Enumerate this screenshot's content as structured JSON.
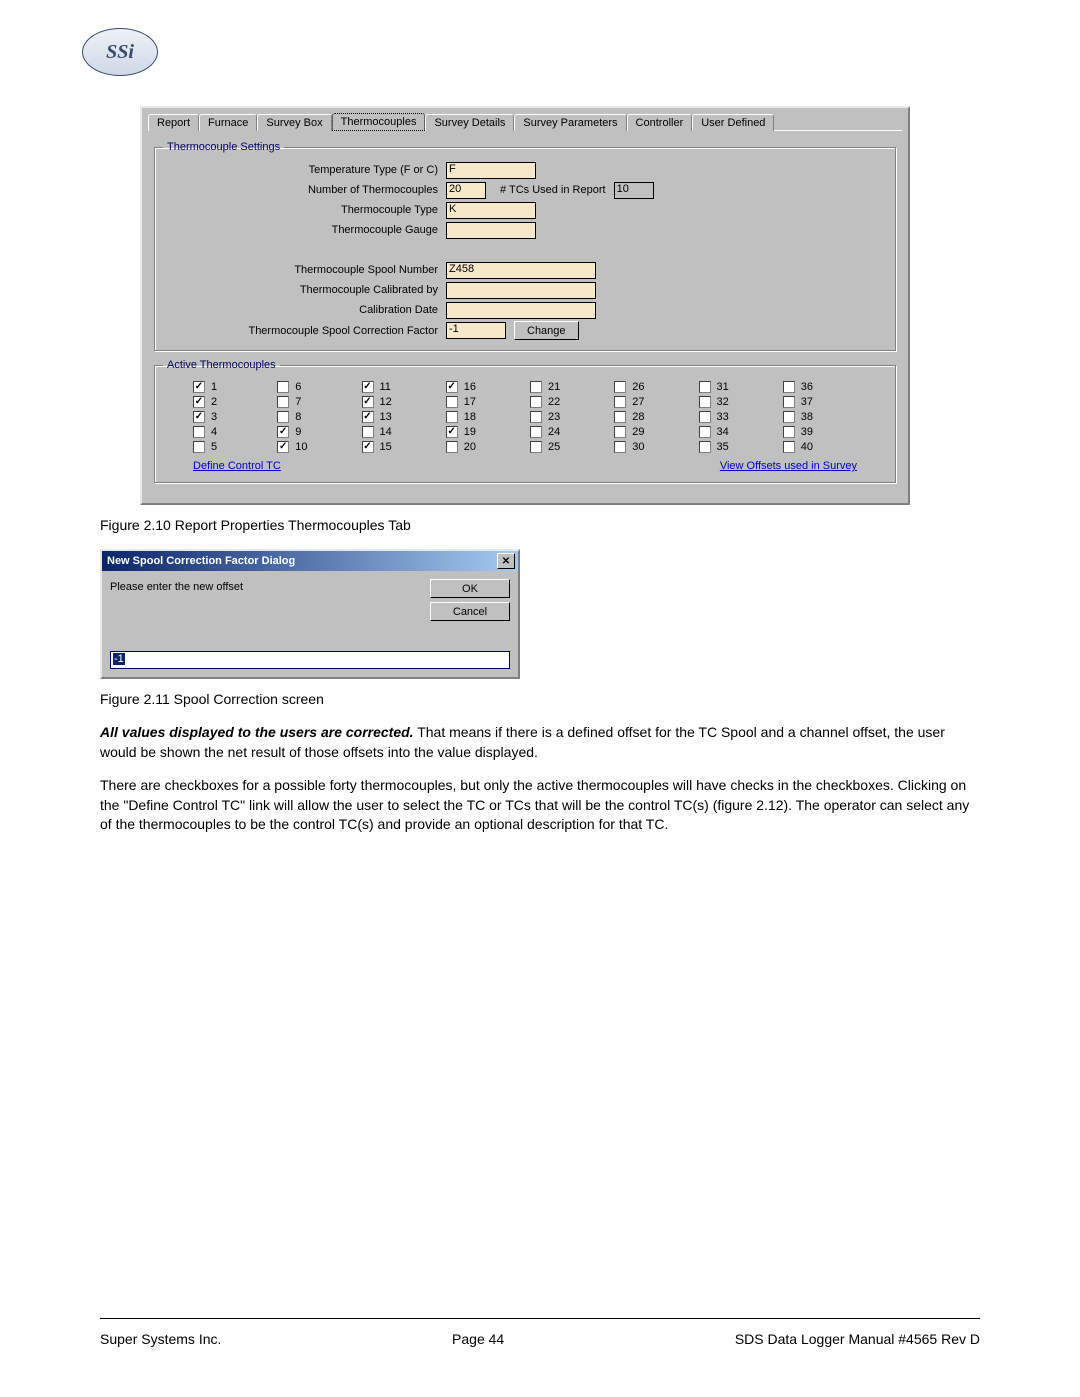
{
  "logo_text": "SSi",
  "tabs": [
    "Report",
    "Furnace",
    "Survey Box",
    "Thermocouples",
    "Survey Details",
    "Survey Parameters",
    "Controller",
    "User Defined"
  ],
  "active_tab_index": 3,
  "group_settings_title": "Thermocouple Settings",
  "labels": {
    "temp_type": "Temperature Type (F or C)",
    "num_tc": "Number of Thermocouples",
    "tcs_used": "# TCs Used in Report",
    "tc_type": "Thermocouple Type",
    "tc_gauge": "Thermocouple Gauge",
    "spool_num": "Thermocouple Spool Number",
    "calibrated_by": "Thermocouple Calibrated by",
    "cal_date": "Calibration Date",
    "spool_factor": "Thermocouple Spool Correction Factor"
  },
  "values": {
    "temp_type": "F",
    "num_tc": "20",
    "tcs_used": "10",
    "tc_type": "K",
    "tc_gauge": "",
    "spool_num": "Z458",
    "calibrated_by": "",
    "cal_date": "",
    "spool_factor": "-1"
  },
  "change_btn": "Change",
  "group_active_title": "Active Thermocouples",
  "checked_tcs": [
    1,
    2,
    3,
    9,
    10,
    11,
    12,
    13,
    15,
    16,
    19
  ],
  "tc_count": 40,
  "links": {
    "define": "Define Control TC",
    "offsets": "View Offsets used in Survey"
  },
  "figcap1": "Figure 2.10 Report Properties Thermocouples Tab",
  "dialog": {
    "title": "New Spool Correction Factor Dialog",
    "prompt": "Please enter the new offset",
    "ok": "OK",
    "cancel": "Cancel",
    "value": "-1"
  },
  "figcap2": "Figure 2.11 Spool Correction screen",
  "para1_bold": "All values displayed to the users are corrected.",
  "para1_rest": "  That means if there is a defined offset for the TC Spool and a channel offset, the user would be shown the net result of those offsets into the value displayed.",
  "para2": "There are checkboxes for a possible forty thermocouples, but only the active thermocouples will have checks in the checkboxes.  Clicking on the \"Define Control TC\" link will allow the user to select the TC or TCs that will be the control TC(s) (figure 2.12).  The operator can select any of the thermocouples to be the control TC(s) and provide an optional description for that TC.",
  "footer": {
    "left": "Super Systems Inc.",
    "center": "Page 44",
    "right": "SDS Data Logger Manual #4565 Rev D"
  }
}
